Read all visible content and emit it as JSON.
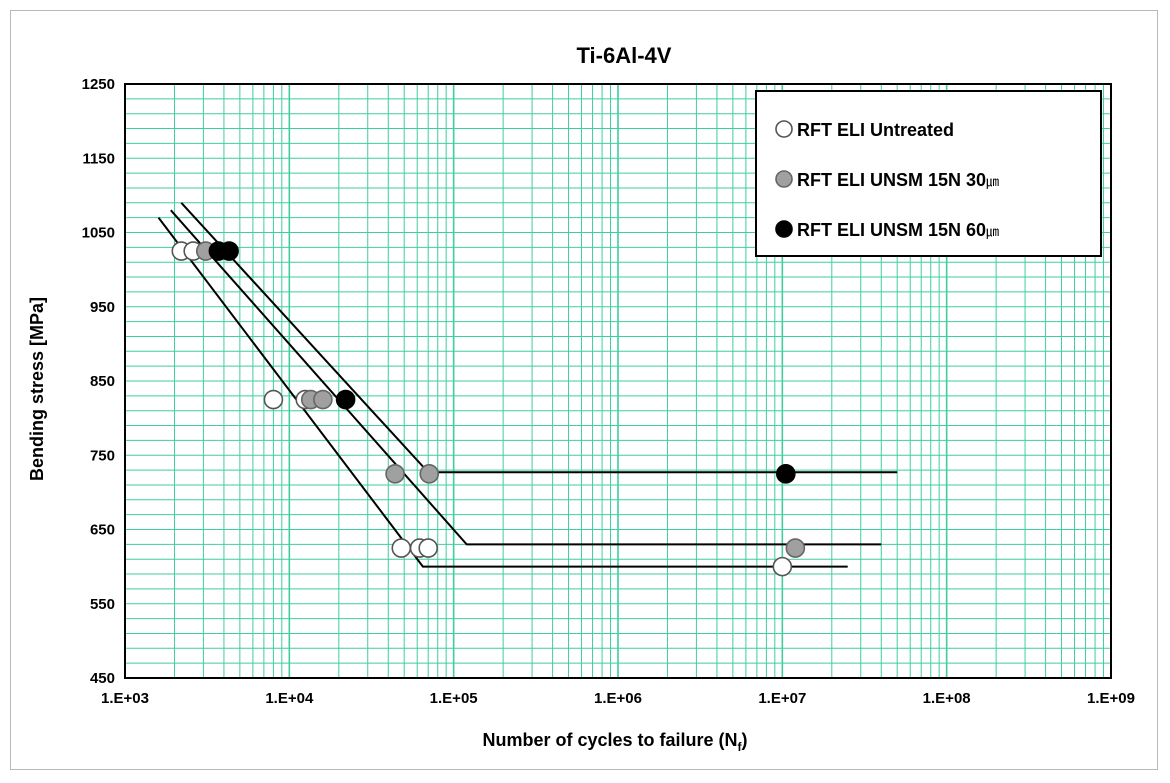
{
  "chart_data": {
    "type": "scatter",
    "title": "Ti-6Al-4V",
    "xlabel": "Number of cycles to failure (N",
    "xlabel_sub": "f",
    "xlabel_end": ")",
    "ylabel": "Bending stress [MPa]",
    "xscale": "log",
    "xlim": [
      1000,
      1000000000
    ],
    "ylim": [
      450,
      1250
    ],
    "grid": true,
    "legend_position": "top-right",
    "x_ticks": [
      "1.E+03",
      "1.E+04",
      "1.E+05",
      "1.E+06",
      "1.E+07",
      "1.E+08",
      "1.E+09"
    ],
    "x_tick_values": [
      1000,
      10000,
      100000,
      1000000,
      10000000,
      100000000,
      1000000000
    ],
    "y_ticks": [
      450,
      550,
      650,
      750,
      850,
      950,
      1050,
      1150,
      1250
    ],
    "colors": {
      "grid": "#3ecf9e",
      "frame": "#000000",
      "untreated": "#ffffff",
      "unsm30": "#a0a0a0",
      "unsm60": "#000000"
    },
    "series": [
      {
        "name": "RFT ELI Untreated",
        "marker": "open-circle",
        "points": [
          {
            "x": 2200,
            "y": 1025
          },
          {
            "x": 2600,
            "y": 1025
          },
          {
            "x": 8000,
            "y": 825
          },
          {
            "x": 12500,
            "y": 825
          },
          {
            "x": 48000,
            "y": 625
          },
          {
            "x": 62000,
            "y": 625
          },
          {
            "x": 70000,
            "y": 625
          },
          {
            "x": 10000000,
            "y": 600
          }
        ],
        "fit": [
          {
            "x": 1600,
            "y": 1070
          },
          {
            "x": 65000,
            "y": 600
          },
          {
            "x": 25000000,
            "y": 600
          }
        ]
      },
      {
        "name": "RFT ELI UNSM 15N 30",
        "name_unit": "㎛",
        "marker": "gray-circle",
        "points": [
          {
            "x": 3100,
            "y": 1025
          },
          {
            "x": 13500,
            "y": 825
          },
          {
            "x": 16000,
            "y": 825
          },
          {
            "x": 44000,
            "y": 725
          },
          {
            "x": 71000,
            "y": 725
          },
          {
            "x": 12000000,
            "y": 625
          }
        ],
        "fit": [
          {
            "x": 1900,
            "y": 1080
          },
          {
            "x": 120000,
            "y": 630
          },
          {
            "x": 40000000,
            "y": 630
          }
        ]
      },
      {
        "name": "RFT ELI UNSM 15N 60",
        "name_unit": "㎛",
        "marker": "filled-circle",
        "points": [
          {
            "x": 3700,
            "y": 1025
          },
          {
            "x": 4300,
            "y": 1025
          },
          {
            "x": 22000,
            "y": 825
          },
          {
            "x": 10500000,
            "y": 725
          }
        ],
        "fit": [
          {
            "x": 2200,
            "y": 1090
          },
          {
            "x": 70000,
            "y": 727
          },
          {
            "x": 50000000,
            "y": 727
          }
        ]
      }
    ]
  }
}
